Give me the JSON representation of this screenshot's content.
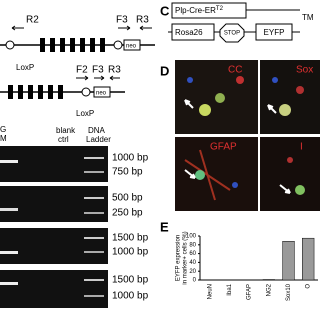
{
  "schematic_a": {
    "labels": [
      "R2",
      "F3",
      "R3",
      "LoxP",
      "neo"
    ]
  },
  "schematic_b": {
    "labels": [
      "F2",
      "F3",
      "R3",
      "LoxP",
      "neo"
    ]
  },
  "gel": {
    "lane_headers": [
      "G",
      "M",
      "blank",
      "ctrl",
      "DNA",
      "Ladder"
    ],
    "size_labels": [
      "1000 bp",
      "750 bp",
      "500 bp",
      "250 bp",
      "1500 bp",
      "1000 bp",
      "1500 bp",
      "1000 bp"
    ]
  },
  "panel_c": {
    "label": "C",
    "transgene": "Plp-Cre-ER",
    "superscript": "T2",
    "tm": "TM",
    "locus": "Rosa26",
    "stop": "STOP",
    "reporter": "EYFP"
  },
  "panel_d": {
    "label": "D",
    "stains": [
      "CC",
      "Sox",
      "GFAP",
      "I"
    ]
  },
  "chart_data": {
    "type": "bar",
    "label": "E",
    "y_label": [
      "EYFP expression",
      "in marker+ cells (%)"
    ],
    "categories": [
      "NeuN",
      "Iba1",
      "GFAP",
      "NG2",
      "Sox10",
      "O"
    ],
    "values": [
      0,
      0,
      0,
      1,
      88,
      95
    ],
    "color": "#9a9a9a",
    "ylim": [
      0,
      100
    ],
    "yticks": [
      0,
      20,
      40,
      60,
      80,
      100
    ]
  }
}
